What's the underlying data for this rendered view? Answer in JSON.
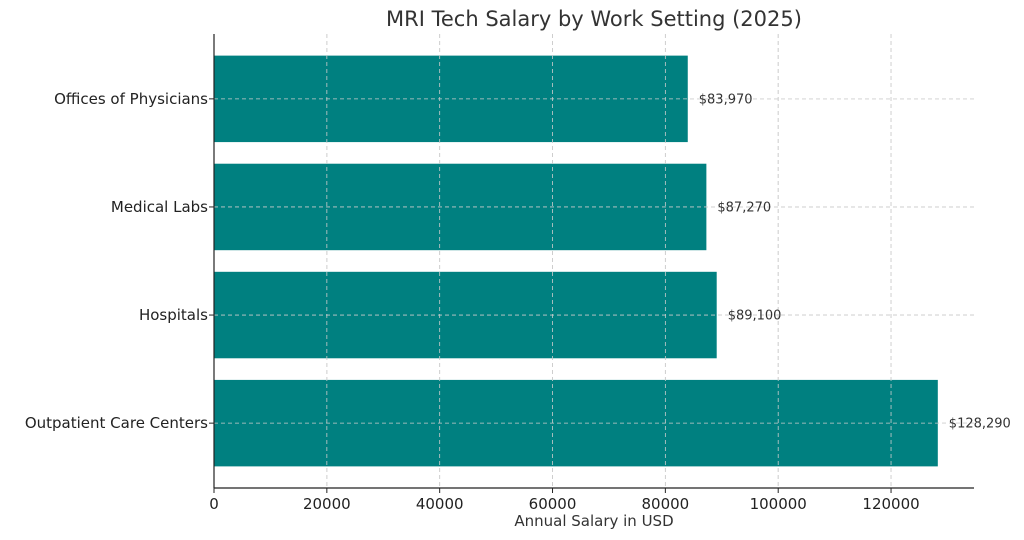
{
  "chart_data": {
    "type": "bar",
    "orientation": "horizontal",
    "title": "MRI Tech Salary by Work Setting (2025)",
    "xlabel": "Annual Salary in USD",
    "ylabel": "",
    "categories": [
      "Outpatient Care Centers",
      "Hospitals",
      "Medical Labs",
      "Offices of Physicians"
    ],
    "values": [
      128290,
      89100,
      87270,
      83970
    ],
    "value_labels": [
      "$128,290",
      "$89,100",
      "$87,270",
      "$83,970"
    ],
    "xlim": [
      0,
      134704
    ],
    "xticks": [
      0,
      20000,
      40000,
      60000,
      80000,
      100000,
      120000
    ],
    "xtick_labels": [
      "0",
      "20000",
      "40000",
      "60000",
      "80000",
      "100000",
      "120000"
    ],
    "grid": true,
    "bar_color": "#008080"
  }
}
